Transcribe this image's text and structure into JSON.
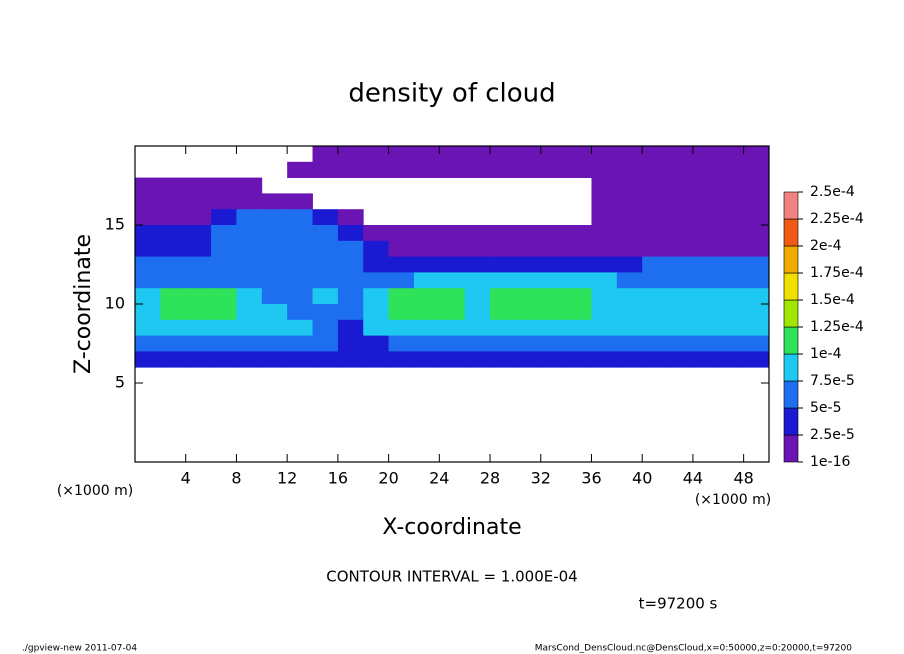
{
  "chart_data": {
    "type": "heatmap",
    "title": "density of cloud",
    "x_label": "X-coordinate",
    "y_label": "Z-coordinate",
    "x_unit": "(×1000 m)",
    "y_unit": "(×1000 m)",
    "contour_interval": "CONTOUR INTERVAL = 1.000E-04",
    "time_label": "t=97200 s",
    "footer_left": "./gpview-new  2011-07-04",
    "footer_right": "MarsCond_DensCloud.nc@DensCloud,x=0:50000,z=0:20000,t=97200",
    "xlim": [
      0,
      50
    ],
    "ylim": [
      0,
      20
    ],
    "xticks": [
      4,
      8,
      12,
      16,
      20,
      24,
      28,
      32,
      36,
      40,
      44,
      48
    ],
    "yticks": [
      5,
      10,
      15
    ],
    "x": [
      1,
      3,
      5,
      7,
      9,
      11,
      13,
      15,
      17,
      19,
      21,
      23,
      25,
      27,
      29,
      31,
      33,
      35,
      37,
      39,
      41,
      43,
      45,
      47,
      49
    ],
    "z": [
      19.5,
      18.5,
      17.5,
      16.5,
      15.5,
      14.5,
      13.5,
      12.5,
      11.5,
      10.5,
      9.5,
      8.5,
      7.5,
      6.5
    ],
    "values": [
      [
        null,
        null,
        null,
        null,
        null,
        null,
        null,
        1e-05,
        1e-05,
        1e-05,
        1e-05,
        1e-05,
        1e-05,
        1e-05,
        1e-05,
        1e-05,
        1e-05,
        1e-05,
        1e-05,
        1e-05,
        1e-05,
        1e-05,
        1e-05,
        1e-05,
        1e-05
      ],
      [
        null,
        null,
        null,
        null,
        null,
        null,
        1e-05,
        1e-05,
        1e-05,
        1e-05,
        1e-05,
        1e-05,
        1e-05,
        1e-05,
        1e-05,
        1e-05,
        1e-05,
        1e-05,
        1e-05,
        1e-05,
        1e-05,
        1e-05,
        1e-05,
        1e-05,
        1e-05
      ],
      [
        1e-05,
        1e-05,
        1e-05,
        1e-05,
        1e-05,
        null,
        null,
        null,
        null,
        null,
        null,
        null,
        null,
        null,
        null,
        null,
        null,
        null,
        1e-05,
        1e-05,
        1e-05,
        1e-05,
        1e-05,
        1e-05,
        1e-05
      ],
      [
        1e-05,
        1e-05,
        1e-05,
        1e-05,
        1e-05,
        1e-05,
        1e-05,
        null,
        null,
        null,
        null,
        null,
        null,
        null,
        null,
        null,
        null,
        null,
        1e-05,
        1e-05,
        1e-05,
        1e-05,
        1e-05,
        1e-05,
        1e-05
      ],
      [
        1e-05,
        1e-05,
        1e-05,
        3.75e-05,
        6.25e-05,
        6.25e-05,
        6.25e-05,
        3.75e-05,
        1e-05,
        null,
        null,
        null,
        null,
        null,
        null,
        null,
        null,
        null,
        1e-05,
        1e-05,
        1e-05,
        1e-05,
        1e-05,
        1e-05,
        1e-05
      ],
      [
        3.75e-05,
        3.75e-05,
        3.75e-05,
        6.25e-05,
        6.25e-05,
        6.25e-05,
        6.25e-05,
        6.25e-05,
        3.75e-05,
        1e-05,
        1e-05,
        1e-05,
        1e-05,
        1e-05,
        1e-05,
        1e-05,
        1e-05,
        1e-05,
        1e-05,
        1e-05,
        1e-05,
        1e-05,
        1e-05,
        1e-05,
        1e-05
      ],
      [
        3.75e-05,
        3.75e-05,
        3.75e-05,
        6.25e-05,
        6.25e-05,
        6.25e-05,
        6.25e-05,
        6.25e-05,
        6.25e-05,
        3.75e-05,
        1e-05,
        1e-05,
        1e-05,
        1e-05,
        1e-05,
        1e-05,
        1e-05,
        1e-05,
        1e-05,
        1e-05,
        1e-05,
        1e-05,
        1e-05,
        1e-05,
        1e-05
      ],
      [
        6.25e-05,
        6.25e-05,
        6.25e-05,
        6.25e-05,
        6.25e-05,
        6.25e-05,
        6.25e-05,
        6.25e-05,
        6.25e-05,
        3.75e-05,
        3.75e-05,
        3.75e-05,
        3.75e-05,
        3.75e-05,
        3.75e-05,
        3.75e-05,
        3.75e-05,
        3.75e-05,
        3.75e-05,
        3.75e-05,
        6.25e-05,
        6.25e-05,
        6.25e-05,
        6.25e-05,
        6.25e-05
      ],
      [
        6.25e-05,
        6.25e-05,
        6.25e-05,
        6.25e-05,
        6.25e-05,
        6.25e-05,
        6.25e-05,
        6.25e-05,
        6.25e-05,
        6.25e-05,
        6.25e-05,
        8.75e-05,
        8.75e-05,
        8.75e-05,
        8.75e-05,
        8.75e-05,
        8.75e-05,
        8.75e-05,
        8.75e-05,
        6.25e-05,
        6.25e-05,
        6.25e-05,
        6.25e-05,
        6.25e-05,
        6.25e-05
      ],
      [
        8.75e-05,
        0.0001125,
        0.0001125,
        0.0001125,
        8.75e-05,
        6.25e-05,
        6.25e-05,
        8.75e-05,
        6.25e-05,
        8.75e-05,
        0.0001125,
        0.0001125,
        0.0001125,
        8.75e-05,
        0.0001125,
        0.0001125,
        0.0001125,
        0.0001125,
        8.75e-05,
        8.75e-05,
        8.75e-05,
        8.75e-05,
        8.75e-05,
        8.75e-05,
        8.75e-05
      ],
      [
        8.75e-05,
        0.0001125,
        0.0001125,
        0.0001125,
        8.75e-05,
        8.75e-05,
        6.25e-05,
        6.25e-05,
        6.25e-05,
        8.75e-05,
        0.0001125,
        0.0001125,
        0.0001125,
        8.75e-05,
        0.0001125,
        0.0001125,
        0.0001125,
        0.0001125,
        8.75e-05,
        8.75e-05,
        8.75e-05,
        8.75e-05,
        8.75e-05,
        8.75e-05,
        8.75e-05
      ],
      [
        8.75e-05,
        8.75e-05,
        8.75e-05,
        8.75e-05,
        8.75e-05,
        8.75e-05,
        8.75e-05,
        6.25e-05,
        3.75e-05,
        8.75e-05,
        8.75e-05,
        8.75e-05,
        8.75e-05,
        8.75e-05,
        8.75e-05,
        8.75e-05,
        8.75e-05,
        8.75e-05,
        8.75e-05,
        8.75e-05,
        8.75e-05,
        8.75e-05,
        8.75e-05,
        8.75e-05,
        8.75e-05
      ],
      [
        6.25e-05,
        6.25e-05,
        6.25e-05,
        6.25e-05,
        6.25e-05,
        6.25e-05,
        6.25e-05,
        6.25e-05,
        3.75e-05,
        3.75e-05,
        6.25e-05,
        6.25e-05,
        6.25e-05,
        6.25e-05,
        6.25e-05,
        6.25e-05,
        6.25e-05,
        6.25e-05,
        6.25e-05,
        6.25e-05,
        6.25e-05,
        6.25e-05,
        6.25e-05,
        6.25e-05,
        6.25e-05
      ],
      [
        3.75e-05,
        3.75e-05,
        3.75e-05,
        3.75e-05,
        3.75e-05,
        3.75e-05,
        3.75e-05,
        3.75e-05,
        3.75e-05,
        3.75e-05,
        3.75e-05,
        3.75e-05,
        3.75e-05,
        3.75e-05,
        3.75e-05,
        3.75e-05,
        3.75e-05,
        3.75e-05,
        3.75e-05,
        3.75e-05,
        3.75e-05,
        3.75e-05,
        3.75e-05,
        3.75e-05,
        3.75e-05
      ]
    ],
    "levels": [
      1e-16,
      {
        "value": 2.5e-05,
        "label": "2.5e-5"
      },
      {
        "value": 5e-05,
        "label": "5e-5"
      },
      {
        "value": 7.5e-05,
        "label": "7.5e-5"
      },
      {
        "value": 0.0001,
        "label": "1e-4"
      },
      {
        "value": 0.000125,
        "label": "1.25e-4"
      },
      {
        "value": 0.00015,
        "label": "1.5e-4"
      },
      {
        "value": 0.000175,
        "label": "1.75e-4"
      },
      {
        "value": 0.0002,
        "label": "2e-4"
      },
      {
        "value": 0.000225,
        "label": "2.25e-4"
      },
      {
        "value": 0.00025,
        "label": "2.5e-4"
      }
    ],
    "colors": [
      "#6a14b4",
      "#1a1ad2",
      "#1e6ef0",
      "#1ec8f0",
      "#2ee25a",
      "#a0e600",
      "#f0e000",
      "#f0aa00",
      "#f05a14",
      "#f08282"
    ]
  }
}
